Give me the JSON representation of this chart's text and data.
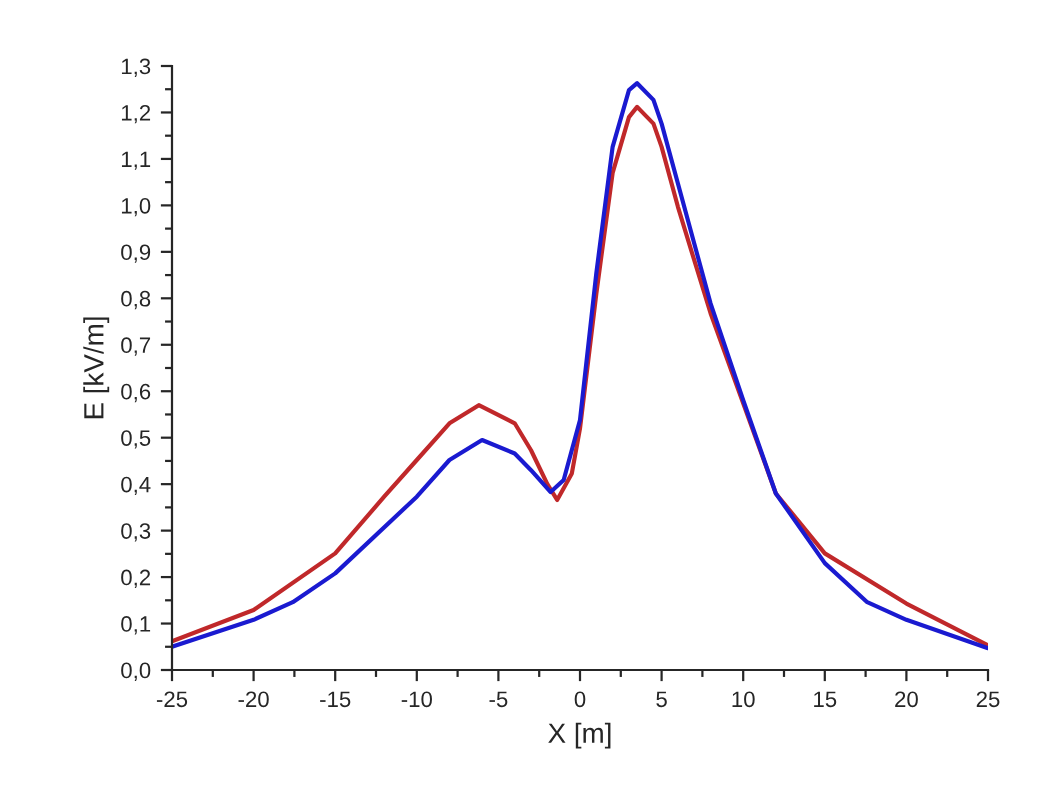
{
  "chart_data": {
    "type": "line",
    "xlabel": "X [m]",
    "ylabel": "E [kV/m]",
    "xlim": [
      -25,
      25
    ],
    "xticks": [
      -25,
      -20,
      -15,
      -10,
      -5,
      0,
      5,
      10,
      15,
      20,
      25
    ],
    "ylim": [
      0,
      1.3
    ],
    "yticks": [
      {
        "value": 0,
        "label": "0,0"
      },
      {
        "value": 0.1,
        "label": "0,1"
      },
      {
        "value": 0.2,
        "label": "0,2"
      },
      {
        "value": 0.3,
        "label": "0,3"
      },
      {
        "value": 0.4,
        "label": "0,4"
      },
      {
        "value": 0.5,
        "label": "0,5"
      },
      {
        "value": 0.6,
        "label": "0,6"
      },
      {
        "value": 0.7,
        "label": "0,7"
      },
      {
        "value": 0.8,
        "label": "0,8"
      },
      {
        "value": 0.9,
        "label": "0,9"
      },
      {
        "value": 1.0,
        "label": "1,0"
      },
      {
        "value": 1.1,
        "label": "1,1"
      },
      {
        "value": 1.2,
        "label": "1,2"
      },
      {
        "value": 1.3,
        "label": "1,3"
      }
    ],
    "grid": false,
    "marker": "none",
    "line_style": "solid",
    "series": [
      {
        "color": "#c0282a",
        "x": [
          -25,
          -20,
          -15,
          -12,
          -10,
          -8,
          -6.2,
          -4,
          -3,
          -2,
          -1.4,
          -0.5,
          0,
          1,
          2,
          3,
          3.5,
          4.5,
          5,
          6,
          7,
          8,
          10,
          12,
          15,
          20,
          25
        ],
        "values": [
          0.062,
          0.129,
          0.251,
          0.373,
          0.452,
          0.531,
          0.57,
          0.531,
          0.473,
          0.4,
          0.366,
          0.423,
          0.52,
          0.81,
          1.07,
          1.19,
          1.212,
          1.176,
          1.126,
          0.997,
          0.882,
          0.768,
          0.574,
          0.38,
          0.251,
          0.143,
          0.053
        ]
      },
      {
        "color": "#1a1ad0",
        "x": [
          -25,
          -20,
          -17.6,
          -15,
          -10,
          -8,
          -6,
          -4,
          -3,
          -1.8,
          -1,
          0,
          1,
          2,
          3,
          3.5,
          4.5,
          5,
          6,
          7,
          8,
          10,
          12,
          15,
          17.6,
          20,
          25
        ],
        "values": [
          0.05,
          0.108,
          0.146,
          0.208,
          0.373,
          0.452,
          0.495,
          0.466,
          0.43,
          0.383,
          0.409,
          0.538,
          0.854,
          1.126,
          1.248,
          1.263,
          1.227,
          1.176,
          1.047,
          0.918,
          0.789,
          0.581,
          0.38,
          0.23,
          0.146,
          0.108,
          0.047
        ]
      }
    ]
  }
}
